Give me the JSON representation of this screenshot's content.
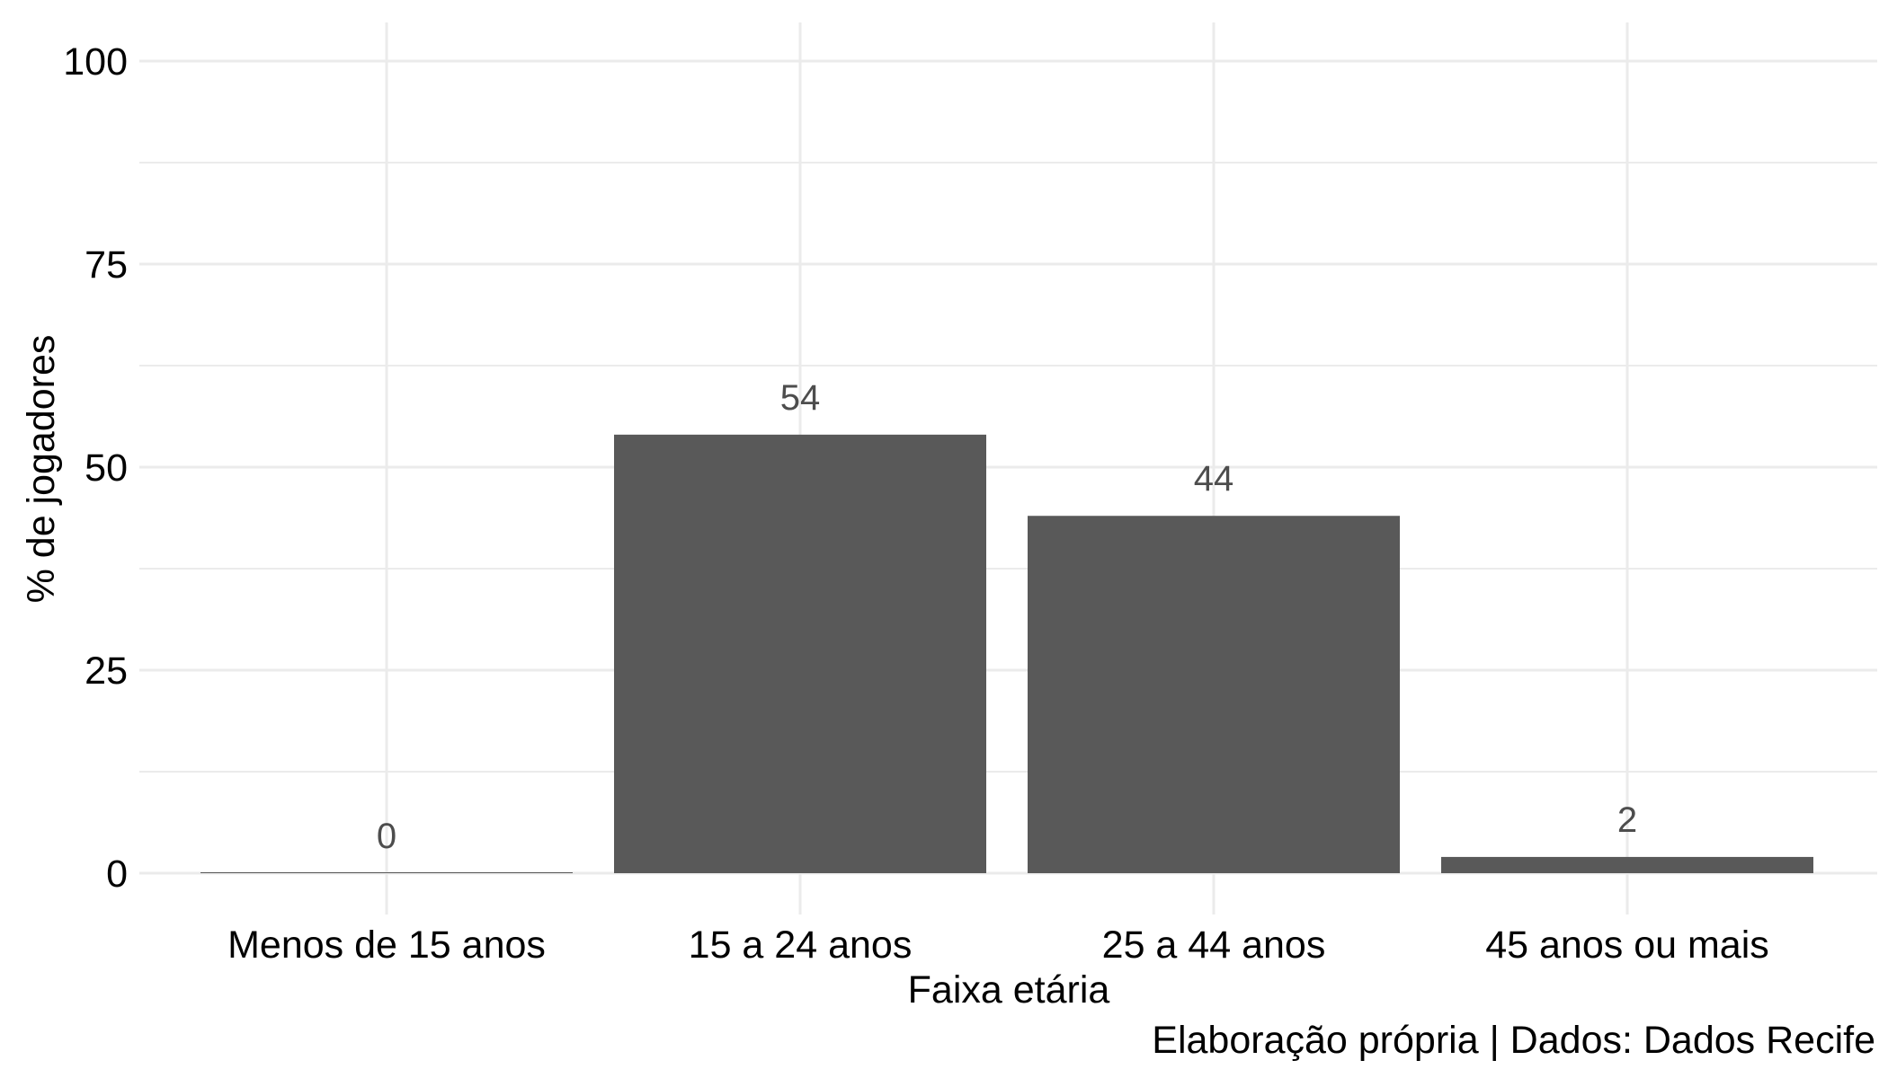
{
  "chart_data": {
    "type": "bar",
    "categories": [
      "Menos de 15 anos",
      "15 a 24 anos",
      "25 a 44 anos",
      "45 anos ou mais"
    ],
    "values": [
      0,
      54,
      44,
      2
    ],
    "data_labels": [
      "0",
      "54",
      "44",
      "2"
    ],
    "xlabel": "Faixa etária",
    "ylabel": "% de jogadores",
    "caption": "Elaboração própria | Dados: Dados Recife",
    "ylim": [
      0,
      100
    ],
    "yticks": [
      0,
      25,
      50,
      75,
      100
    ],
    "grid": true,
    "legend": "none",
    "colors": {
      "bar": "#595959",
      "grid": "#ebebeb",
      "data_label": "#4d4d4d"
    }
  }
}
